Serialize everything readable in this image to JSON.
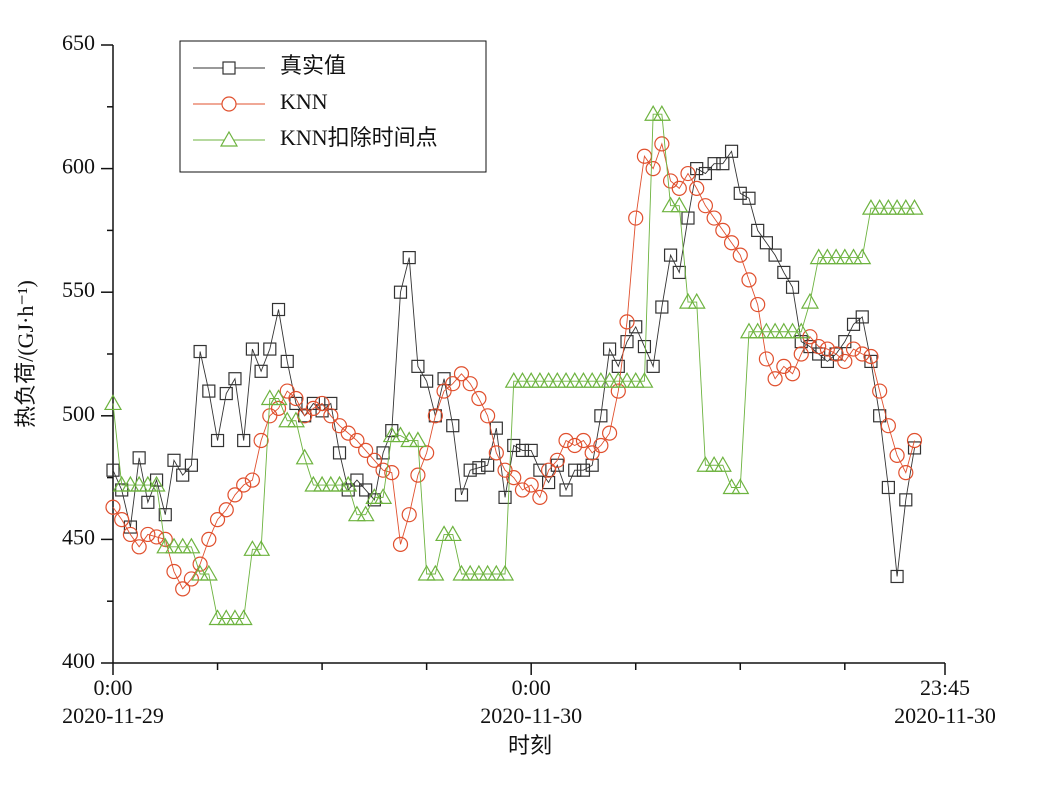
{
  "chart_data": {
    "type": "line",
    "x_label": "时刻",
    "y_label": "热负荷/(GJ·h⁻¹)",
    "xlim": [
      0,
      47.75
    ],
    "xticks": [
      {
        "value": 0,
        "label": "0:00",
        "date": "2020-11-29"
      },
      {
        "value": 24,
        "label": "0:00",
        "date": "2020-11-30"
      },
      {
        "value": 47.75,
        "label": "23:45",
        "date": "2020-11-30"
      }
    ],
    "xminor_ticks": [
      6,
      12,
      18,
      30,
      36,
      42
    ],
    "ylim": [
      400,
      650
    ],
    "yticks": [
      400,
      450,
      500,
      550,
      600,
      650
    ],
    "yminor_ticks": [
      425,
      475,
      525,
      575,
      625
    ],
    "legend": "top-left",
    "x": [
      0,
      0.5,
      1,
      1.5,
      2,
      2.5,
      3,
      3.5,
      4,
      4.5,
      5,
      5.5,
      6,
      6.5,
      7,
      7.5,
      8,
      8.5,
      9,
      9.5,
      10,
      10.5,
      11,
      11.5,
      12,
      12.5,
      13,
      13.5,
      14,
      14.5,
      15,
      15.5,
      16,
      16.5,
      17,
      17.5,
      18,
      18.5,
      19,
      19.5,
      20,
      20.5,
      21,
      21.5,
      22,
      22.5,
      23,
      23.5,
      24,
      24.5,
      25,
      25.5,
      26,
      26.5,
      27,
      27.5,
      28,
      28.5,
      29,
      29.5,
      30,
      30.5,
      31,
      31.5,
      32,
      32.5,
      33,
      33.5,
      34,
      34.5,
      35,
      35.5,
      36,
      36.5,
      37,
      37.5,
      38,
      38.5,
      39,
      39.5,
      40,
      40.5,
      41,
      41.5,
      42,
      42.5,
      43,
      43.5,
      44,
      44.5,
      45,
      45.5,
      46
    ],
    "series": [
      {
        "name": "真实值",
        "color": "#333333",
        "marker": "square",
        "values": [
          478,
          470,
          455,
          483,
          465,
          474,
          460,
          482,
          476,
          480,
          526,
          510,
          490,
          509,
          515,
          490,
          527,
          518,
          527,
          543,
          522,
          505,
          500,
          505,
          502,
          505,
          485,
          470,
          474,
          470,
          466,
          485,
          494,
          550,
          564,
          520,
          514,
          500,
          515,
          496,
          468,
          478,
          479,
          480,
          495,
          467,
          488,
          486,
          486,
          478,
          473,
          480,
          470,
          478,
          478,
          480,
          500,
          527,
          520,
          530,
          536,
          528,
          520,
          544,
          565,
          558,
          580,
          600,
          598,
          602,
          602,
          607,
          590,
          588,
          575,
          570,
          565,
          558,
          552,
          530,
          528,
          525,
          522,
          525,
          530,
          537,
          540,
          522,
          500,
          471,
          435,
          466,
          487
        ]
      },
      {
        "name": "KNN",
        "color": "#e0502e",
        "marker": "circle",
        "values": [
          463,
          458,
          452,
          447,
          452,
          451,
          450,
          437,
          430,
          434,
          440,
          450,
          458,
          462,
          468,
          472,
          474,
          490,
          500,
          503,
          510,
          507,
          500,
          503,
          505,
          500,
          496,
          493,
          490,
          486,
          482,
          478,
          477,
          448,
          460,
          476,
          485,
          500,
          510,
          513,
          517,
          513,
          507,
          500,
          485,
          478,
          475,
          470,
          472,
          467,
          478,
          482,
          490,
          488,
          490,
          485,
          488,
          493,
          510,
          538,
          580,
          605,
          600,
          610,
          595,
          592,
          598,
          592,
          585,
          580,
          575,
          570,
          565,
          555,
          545,
          523,
          515,
          520,
          517,
          525,
          532,
          528,
          527,
          525,
          522,
          527,
          525,
          524,
          510,
          496,
          484,
          477,
          490
        ]
      },
      {
        "name": "KNN扣除时间点",
        "color": "#6db33f",
        "marker": "triangle",
        "values": [
          505,
          472,
          472,
          472,
          472,
          472,
          447,
          447,
          447,
          447,
          436,
          436,
          418,
          418,
          418,
          418,
          446,
          446,
          507,
          507,
          498,
          498,
          483,
          472,
          472,
          472,
          472,
          472,
          460,
          460,
          467,
          467,
          492,
          492,
          490,
          490,
          436,
          436,
          452,
          452,
          436,
          436,
          436,
          436,
          436,
          436,
          514,
          514,
          514,
          514,
          514,
          514,
          514,
          514,
          514,
          514,
          514,
          514,
          514,
          514,
          514,
          514,
          622,
          622,
          585,
          585,
          546,
          546,
          480,
          480,
          480,
          471,
          471,
          534,
          534,
          534,
          534,
          534,
          534,
          534,
          546,
          564,
          564,
          564,
          564,
          564,
          564,
          584,
          584,
          584,
          584,
          584,
          584
        ]
      }
    ]
  }
}
